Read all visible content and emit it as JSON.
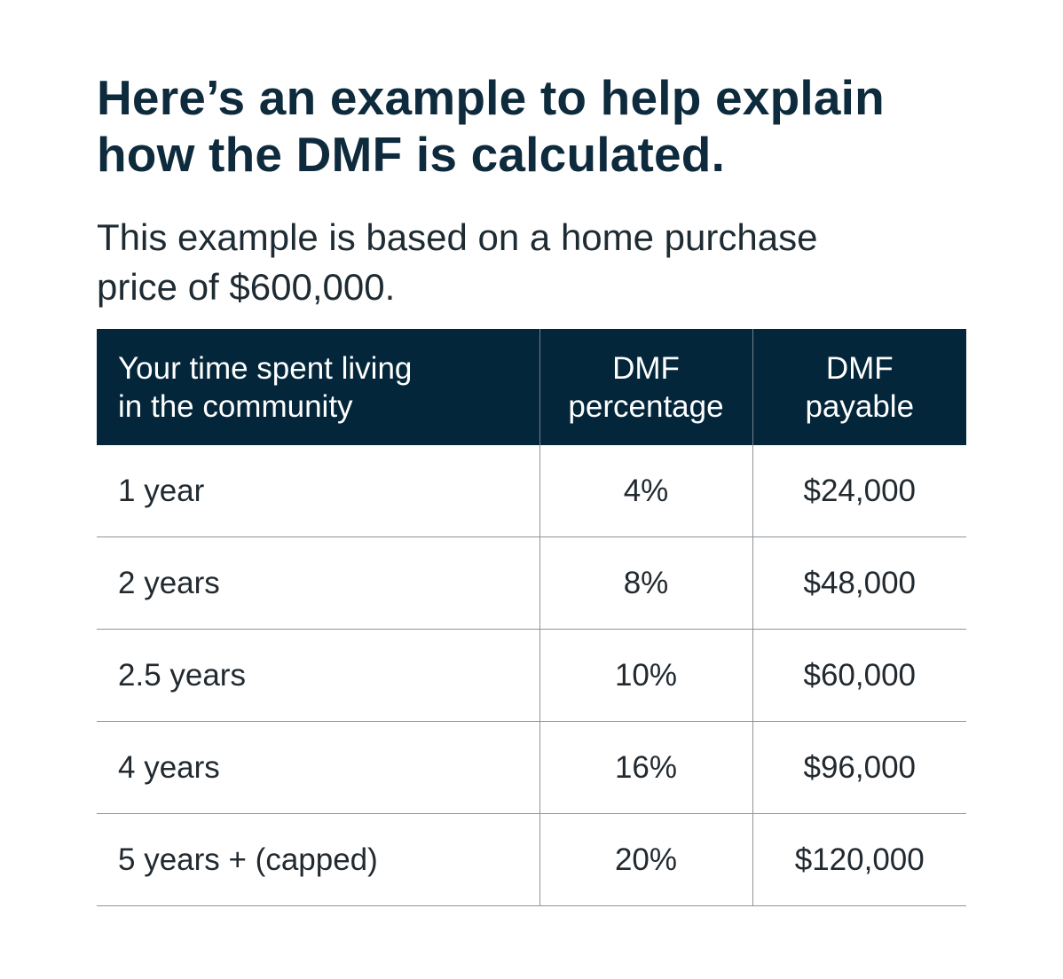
{
  "heading": {
    "line1": "Here’s an example to help explain",
    "line2": "how the DMF is calculated."
  },
  "subheading": {
    "line1": "This example is based on a home purchase",
    "line2": "price of $600,000."
  },
  "table": {
    "headers": [
      {
        "line1": "Your time spent living",
        "line2": "in the community"
      },
      {
        "line1": "DMF",
        "line2": "percentage"
      },
      {
        "line1": "DMF",
        "line2": "payable"
      }
    ],
    "rows": [
      {
        "time": "1 year",
        "percentage": "4%",
        "payable": "$24,000"
      },
      {
        "time": "2 years",
        "percentage": "8%",
        "payable": "$48,000"
      },
      {
        "time": "2.5 years",
        "percentage": "10%",
        "payable": "$60,000"
      },
      {
        "time": "4 years",
        "percentage": "16%",
        "payable": "$96,000"
      },
      {
        "time": "5 years + (capped)",
        "percentage": "20%",
        "payable": "$120,000"
      }
    ]
  },
  "colors": {
    "header_background": "#04263a",
    "heading_text": "#0e2a3d",
    "body_text": "#222a30",
    "divider": "#8e9499"
  }
}
